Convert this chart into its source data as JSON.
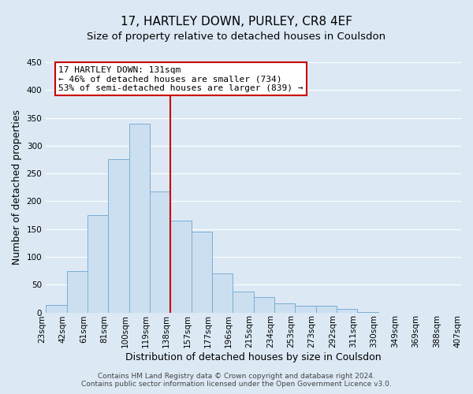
{
  "title": "17, HARTLEY DOWN, PURLEY, CR8 4EF",
  "subtitle": "Size of property relative to detached houses in Coulsdon",
  "xlabel": "Distribution of detached houses by size in Coulsdon",
  "ylabel": "Number of detached properties",
  "bar_heights": [
    13,
    75,
    175,
    275,
    340,
    218,
    165,
    145,
    70,
    37,
    27,
    16,
    12,
    12,
    6,
    1,
    0,
    0,
    0,
    0
  ],
  "bar_color": "#ccdff0",
  "bar_edge_color": "#7aadd4",
  "x_tick_labels": [
    "23sqm",
    "42sqm",
    "61sqm",
    "81sqm",
    "100sqm",
    "119sqm",
    "138sqm",
    "157sqm",
    "177sqm",
    "196sqm",
    "215sqm",
    "234sqm",
    "253sqm",
    "273sqm",
    "292sqm",
    "311sqm",
    "330sqm",
    "349sqm",
    "369sqm",
    "388sqm",
    "407sqm"
  ],
  "ylim": [
    0,
    450
  ],
  "yticks": [
    0,
    50,
    100,
    150,
    200,
    250,
    300,
    350,
    400,
    450
  ],
  "vline_color": "#cc0000",
  "annotation_text": "17 HARTLEY DOWN: 131sqm\n← 46% of detached houses are smaller (734)\n53% of semi-detached houses are larger (839) →",
  "annotation_box_color": "#ffffff",
  "annotation_box_edge": "#cc0000",
  "footer_text": "Contains HM Land Registry data © Crown copyright and database right 2024.\nContains public sector information licensed under the Open Government Licence v3.0.",
  "background_color": "#dce9f5",
  "plot_bg_color": "#dce9f5",
  "grid_color": "#ffffff",
  "title_fontsize": 11,
  "subtitle_fontsize": 9.5,
  "axis_label_fontsize": 9,
  "tick_fontsize": 7.5,
  "footer_fontsize": 6.5,
  "bar_width": 1.0,
  "num_bars": 20,
  "vline_bar_index": 6
}
